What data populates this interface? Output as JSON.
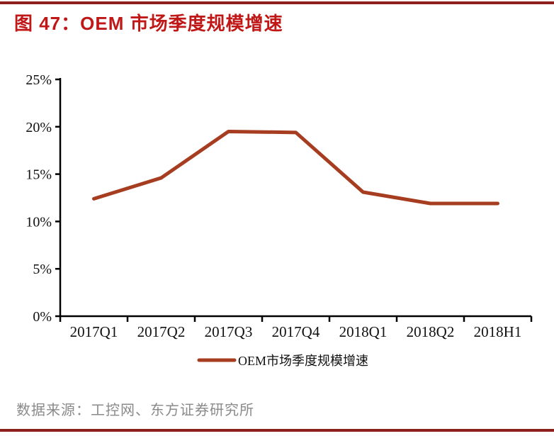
{
  "title": "图 47：OEM 市场季度规模增速",
  "source": "数据来源：工控网、东方证券研究所",
  "colors": {
    "title_red": "#C01717",
    "rule_red": "#8E1F1F",
    "line_red": "#A63D20",
    "axis_color": "#000000",
    "tick_label_color": "#111111",
    "source_gray": "#8A8A8A"
  },
  "chart_data": {
    "type": "line",
    "title": "图 47：OEM 市场季度规模增速",
    "categories": [
      "2017Q1",
      "2017Q2",
      "2017Q3",
      "2017Q4",
      "2018Q1",
      "2018Q2",
      "2018H1"
    ],
    "series": [
      {
        "name": "OEM市场季度规模增速",
        "values": [
          12.4,
          14.6,
          19.5,
          19.4,
          13.1,
          11.9,
          11.9
        ],
        "color": "#A63D20"
      }
    ],
    "xlabel": "",
    "ylabel": "",
    "ylim": [
      0,
      25
    ],
    "ytick_step": 5,
    "ytick_labels": [
      "0%",
      "5%",
      "10%",
      "15%",
      "20%",
      "25%"
    ],
    "grid": false,
    "legend_position": "bottom-center"
  }
}
